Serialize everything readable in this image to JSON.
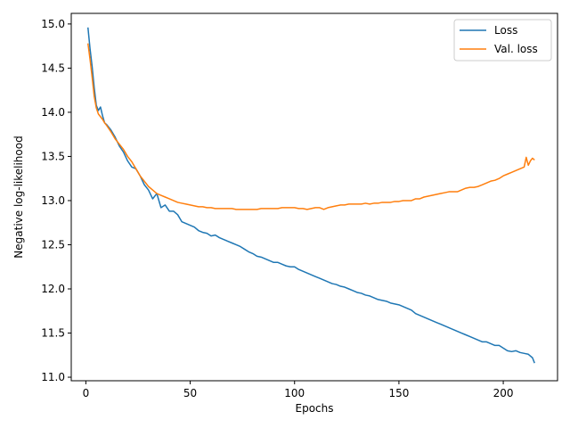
{
  "chart_data": {
    "type": "line",
    "xlabel": "Epochs",
    "ylabel": "Negative log-likelihood",
    "xlim": [
      -7,
      226
    ],
    "ylim": [
      10.96,
      15.12
    ],
    "xticks": [
      0,
      50,
      100,
      150,
      200
    ],
    "yticks": [
      11.0,
      11.5,
      12.0,
      12.5,
      13.0,
      13.5,
      14.0,
      14.5,
      15.0
    ],
    "legend_position": "top-right",
    "grid": false,
    "series": [
      {
        "name": "Loss",
        "color": "#1f77b4",
        "points": [
          [
            1,
            14.96
          ],
          [
            2,
            14.72
          ],
          [
            3,
            14.52
          ],
          [
            4,
            14.28
          ],
          [
            5,
            14.08
          ],
          [
            6,
            14.02
          ],
          [
            7,
            14.06
          ],
          [
            8,
            13.96
          ],
          [
            9,
            13.88
          ],
          [
            10,
            13.86
          ],
          [
            12,
            13.8
          ],
          [
            14,
            13.72
          ],
          [
            16,
            13.62
          ],
          [
            18,
            13.55
          ],
          [
            20,
            13.45
          ],
          [
            22,
            13.38
          ],
          [
            24,
            13.36
          ],
          [
            26,
            13.28
          ],
          [
            28,
            13.18
          ],
          [
            30,
            13.12
          ],
          [
            32,
            13.02
          ],
          [
            34,
            13.08
          ],
          [
            36,
            12.92
          ],
          [
            38,
            12.95
          ],
          [
            40,
            12.88
          ],
          [
            42,
            12.88
          ],
          [
            44,
            12.84
          ],
          [
            46,
            12.76
          ],
          [
            48,
            12.74
          ],
          [
            50,
            12.72
          ],
          [
            52,
            12.7
          ],
          [
            54,
            12.66
          ],
          [
            56,
            12.64
          ],
          [
            58,
            12.63
          ],
          [
            60,
            12.6
          ],
          [
            62,
            12.61
          ],
          [
            64,
            12.58
          ],
          [
            66,
            12.56
          ],
          [
            68,
            12.54
          ],
          [
            70,
            12.52
          ],
          [
            72,
            12.5
          ],
          [
            74,
            12.48
          ],
          [
            76,
            12.45
          ],
          [
            78,
            12.42
          ],
          [
            80,
            12.4
          ],
          [
            82,
            12.37
          ],
          [
            84,
            12.36
          ],
          [
            86,
            12.34
          ],
          [
            88,
            12.32
          ],
          [
            90,
            12.3
          ],
          [
            92,
            12.3
          ],
          [
            94,
            12.28
          ],
          [
            96,
            12.26
          ],
          [
            98,
            12.25
          ],
          [
            100,
            12.25
          ],
          [
            102,
            12.22
          ],
          [
            104,
            12.2
          ],
          [
            106,
            12.18
          ],
          [
            108,
            12.16
          ],
          [
            110,
            12.14
          ],
          [
            112,
            12.12
          ],
          [
            114,
            12.1
          ],
          [
            116,
            12.08
          ],
          [
            118,
            12.06
          ],
          [
            120,
            12.05
          ],
          [
            122,
            12.03
          ],
          [
            124,
            12.02
          ],
          [
            126,
            12.0
          ],
          [
            128,
            11.98
          ],
          [
            130,
            11.96
          ],
          [
            132,
            11.95
          ],
          [
            134,
            11.93
          ],
          [
            136,
            11.92
          ],
          [
            138,
            11.9
          ],
          [
            140,
            11.88
          ],
          [
            142,
            11.87
          ],
          [
            144,
            11.86
          ],
          [
            146,
            11.84
          ],
          [
            148,
            11.83
          ],
          [
            150,
            11.82
          ],
          [
            152,
            11.8
          ],
          [
            154,
            11.78
          ],
          [
            156,
            11.76
          ],
          [
            158,
            11.72
          ],
          [
            160,
            11.7
          ],
          [
            162,
            11.68
          ],
          [
            164,
            11.66
          ],
          [
            166,
            11.64
          ],
          [
            168,
            11.62
          ],
          [
            170,
            11.6
          ],
          [
            172,
            11.58
          ],
          [
            174,
            11.56
          ],
          [
            176,
            11.54
          ],
          [
            178,
            11.52
          ],
          [
            180,
            11.5
          ],
          [
            182,
            11.48
          ],
          [
            184,
            11.46
          ],
          [
            186,
            11.44
          ],
          [
            188,
            11.42
          ],
          [
            190,
            11.4
          ],
          [
            192,
            11.4
          ],
          [
            194,
            11.38
          ],
          [
            196,
            11.36
          ],
          [
            198,
            11.36
          ],
          [
            200,
            11.33
          ],
          [
            202,
            11.3
          ],
          [
            204,
            11.29
          ],
          [
            206,
            11.3
          ],
          [
            208,
            11.28
          ],
          [
            210,
            11.27
          ],
          [
            212,
            11.26
          ],
          [
            214,
            11.22
          ],
          [
            215,
            11.16
          ]
        ]
      },
      {
        "name": "Val. loss",
        "color": "#ff7f0e",
        "points": [
          [
            1,
            14.78
          ],
          [
            2,
            14.6
          ],
          [
            3,
            14.4
          ],
          [
            4,
            14.18
          ],
          [
            5,
            14.05
          ],
          [
            6,
            13.98
          ],
          [
            7,
            13.95
          ],
          [
            8,
            13.92
          ],
          [
            9,
            13.88
          ],
          [
            10,
            13.85
          ],
          [
            12,
            13.78
          ],
          [
            14,
            13.7
          ],
          [
            16,
            13.64
          ],
          [
            18,
            13.58
          ],
          [
            20,
            13.5
          ],
          [
            22,
            13.44
          ],
          [
            24,
            13.36
          ],
          [
            26,
            13.28
          ],
          [
            28,
            13.22
          ],
          [
            30,
            13.16
          ],
          [
            32,
            13.12
          ],
          [
            34,
            13.08
          ],
          [
            36,
            13.06
          ],
          [
            38,
            13.04
          ],
          [
            40,
            13.02
          ],
          [
            42,
            13.0
          ],
          [
            44,
            12.98
          ],
          [
            46,
            12.97
          ],
          [
            48,
            12.96
          ],
          [
            50,
            12.95
          ],
          [
            52,
            12.94
          ],
          [
            54,
            12.93
          ],
          [
            56,
            12.93
          ],
          [
            58,
            12.92
          ],
          [
            60,
            12.92
          ],
          [
            62,
            12.91
          ],
          [
            64,
            12.91
          ],
          [
            66,
            12.91
          ],
          [
            68,
            12.91
          ],
          [
            70,
            12.91
          ],
          [
            72,
            12.9
          ],
          [
            74,
            12.9
          ],
          [
            76,
            12.9
          ],
          [
            78,
            12.9
          ],
          [
            80,
            12.9
          ],
          [
            82,
            12.9
          ],
          [
            84,
            12.91
          ],
          [
            86,
            12.91
          ],
          [
            88,
            12.91
          ],
          [
            90,
            12.91
          ],
          [
            92,
            12.91
          ],
          [
            94,
            12.92
          ],
          [
            96,
            12.92
          ],
          [
            98,
            12.92
          ],
          [
            100,
            12.92
          ],
          [
            102,
            12.91
          ],
          [
            104,
            12.91
          ],
          [
            106,
            12.9
          ],
          [
            108,
            12.91
          ],
          [
            110,
            12.92
          ],
          [
            112,
            12.92
          ],
          [
            114,
            12.9
          ],
          [
            116,
            12.92
          ],
          [
            118,
            12.93
          ],
          [
            120,
            12.94
          ],
          [
            122,
            12.95
          ],
          [
            124,
            12.95
          ],
          [
            126,
            12.96
          ],
          [
            128,
            12.96
          ],
          [
            130,
            12.96
          ],
          [
            132,
            12.96
          ],
          [
            134,
            12.97
          ],
          [
            136,
            12.96
          ],
          [
            138,
            12.97
          ],
          [
            140,
            12.97
          ],
          [
            142,
            12.98
          ],
          [
            144,
            12.98
          ],
          [
            146,
            12.98
          ],
          [
            148,
            12.99
          ],
          [
            150,
            12.99
          ],
          [
            152,
            13.0
          ],
          [
            154,
            13.0
          ],
          [
            156,
            13.0
          ],
          [
            158,
            13.02
          ],
          [
            160,
            13.02
          ],
          [
            162,
            13.04
          ],
          [
            164,
            13.05
          ],
          [
            166,
            13.06
          ],
          [
            168,
            13.07
          ],
          [
            170,
            13.08
          ],
          [
            172,
            13.09
          ],
          [
            174,
            13.1
          ],
          [
            176,
            13.1
          ],
          [
            178,
            13.1
          ],
          [
            180,
            13.12
          ],
          [
            182,
            13.14
          ],
          [
            184,
            13.15
          ],
          [
            186,
            13.15
          ],
          [
            188,
            13.16
          ],
          [
            190,
            13.18
          ],
          [
            192,
            13.2
          ],
          [
            194,
            13.22
          ],
          [
            196,
            13.23
          ],
          [
            198,
            13.25
          ],
          [
            200,
            13.28
          ],
          [
            202,
            13.3
          ],
          [
            204,
            13.32
          ],
          [
            206,
            13.34
          ],
          [
            208,
            13.36
          ],
          [
            210,
            13.38
          ],
          [
            211,
            13.49
          ],
          [
            212,
            13.4
          ],
          [
            213,
            13.45
          ],
          [
            214,
            13.48
          ],
          [
            215,
            13.46
          ]
        ]
      }
    ]
  }
}
